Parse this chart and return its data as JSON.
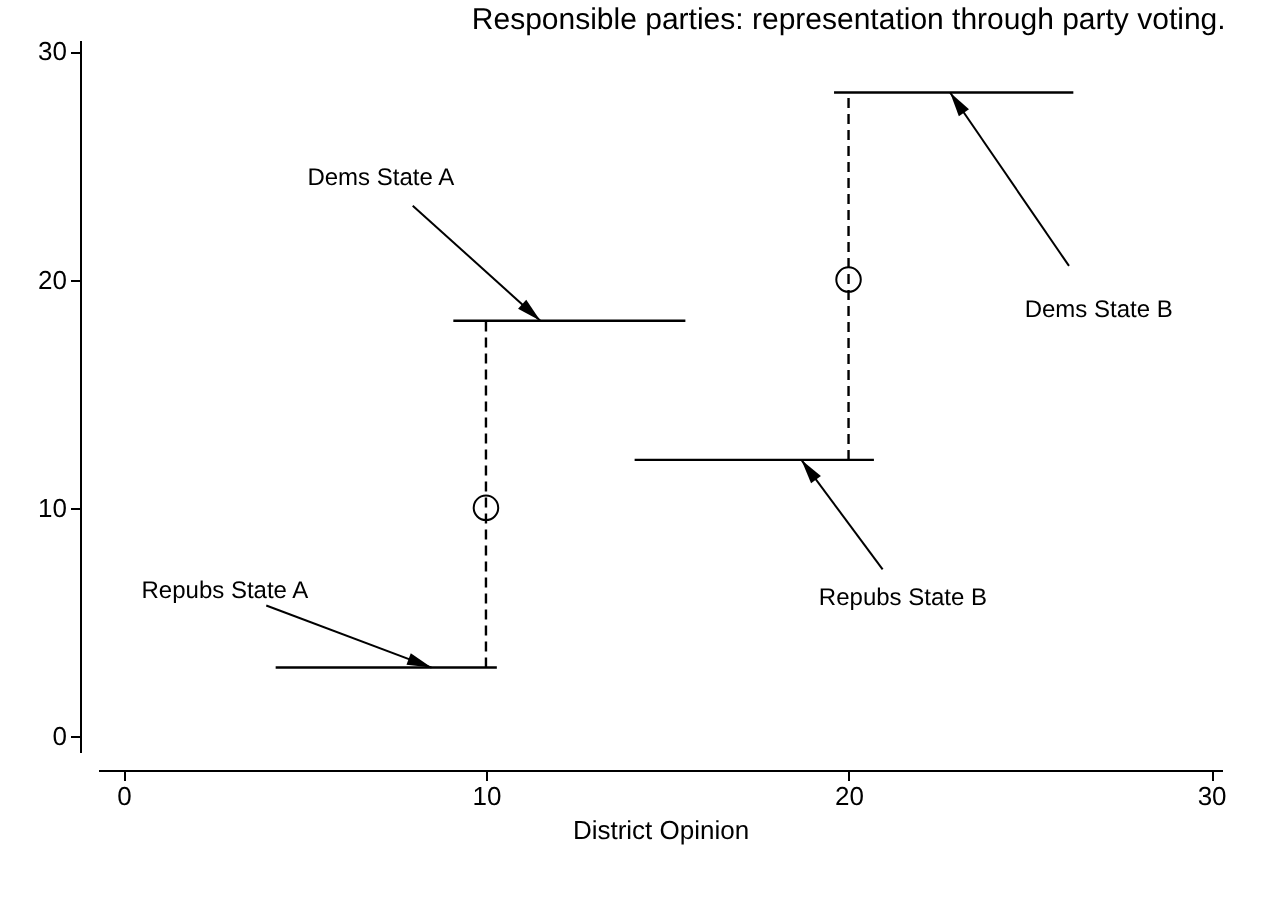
{
  "chart_data": {
    "type": "line",
    "title": "Responsible parties: representation through party voting.",
    "xlabel": "District Opinion",
    "xlim": [
      -0.7,
      30.3
    ],
    "ylim": [
      -0.7,
      30.5
    ],
    "xticks": [
      0,
      10,
      20,
      30
    ],
    "yticks": [
      0,
      10,
      20,
      30
    ],
    "grid": false,
    "series": [
      {
        "color": "#000000",
        "line_style": "solid",
        "x": [
          4.2,
          10.3
        ],
        "values": [
          3,
          3
        ]
      },
      {
        "color": "#000000",
        "line_style": "solid",
        "x": [
          9.1,
          15.5
        ],
        "values": [
          18.2,
          18.2
        ]
      },
      {
        "color": "#000000",
        "line_style": "solid",
        "x": [
          14.1,
          20.7
        ],
        "values": [
          12.1,
          12.1
        ]
      },
      {
        "color": "#000000",
        "line_style": "solid",
        "x": [
          19.6,
          26.2
        ],
        "values": [
          28.2,
          28.2
        ]
      },
      {
        "color": "#000000",
        "line_style": "dashed",
        "x": [
          10,
          10
        ],
        "values": [
          3,
          18.2
        ]
      },
      {
        "color": "#000000",
        "line_style": "dashed",
        "x": [
          20,
          20
        ],
        "values": [
          12.1,
          28.2
        ]
      },
      {
        "type": "scatter",
        "color": "#000000",
        "marker": "circle",
        "x": [
          10,
          20
        ],
        "values": [
          10,
          20
        ]
      }
    ],
    "annotations": [
      {
        "text": "Repubs State A",
        "x": 8.5,
        "y": 3
      },
      {
        "text": "Dems State A",
        "x": 11.5,
        "y": 18.2
      },
      {
        "text": "Repubs State B",
        "x": 18.7,
        "y": 12.1
      },
      {
        "text": "Dems State B",
        "x": 22.8,
        "y": 28.2
      }
    ]
  }
}
